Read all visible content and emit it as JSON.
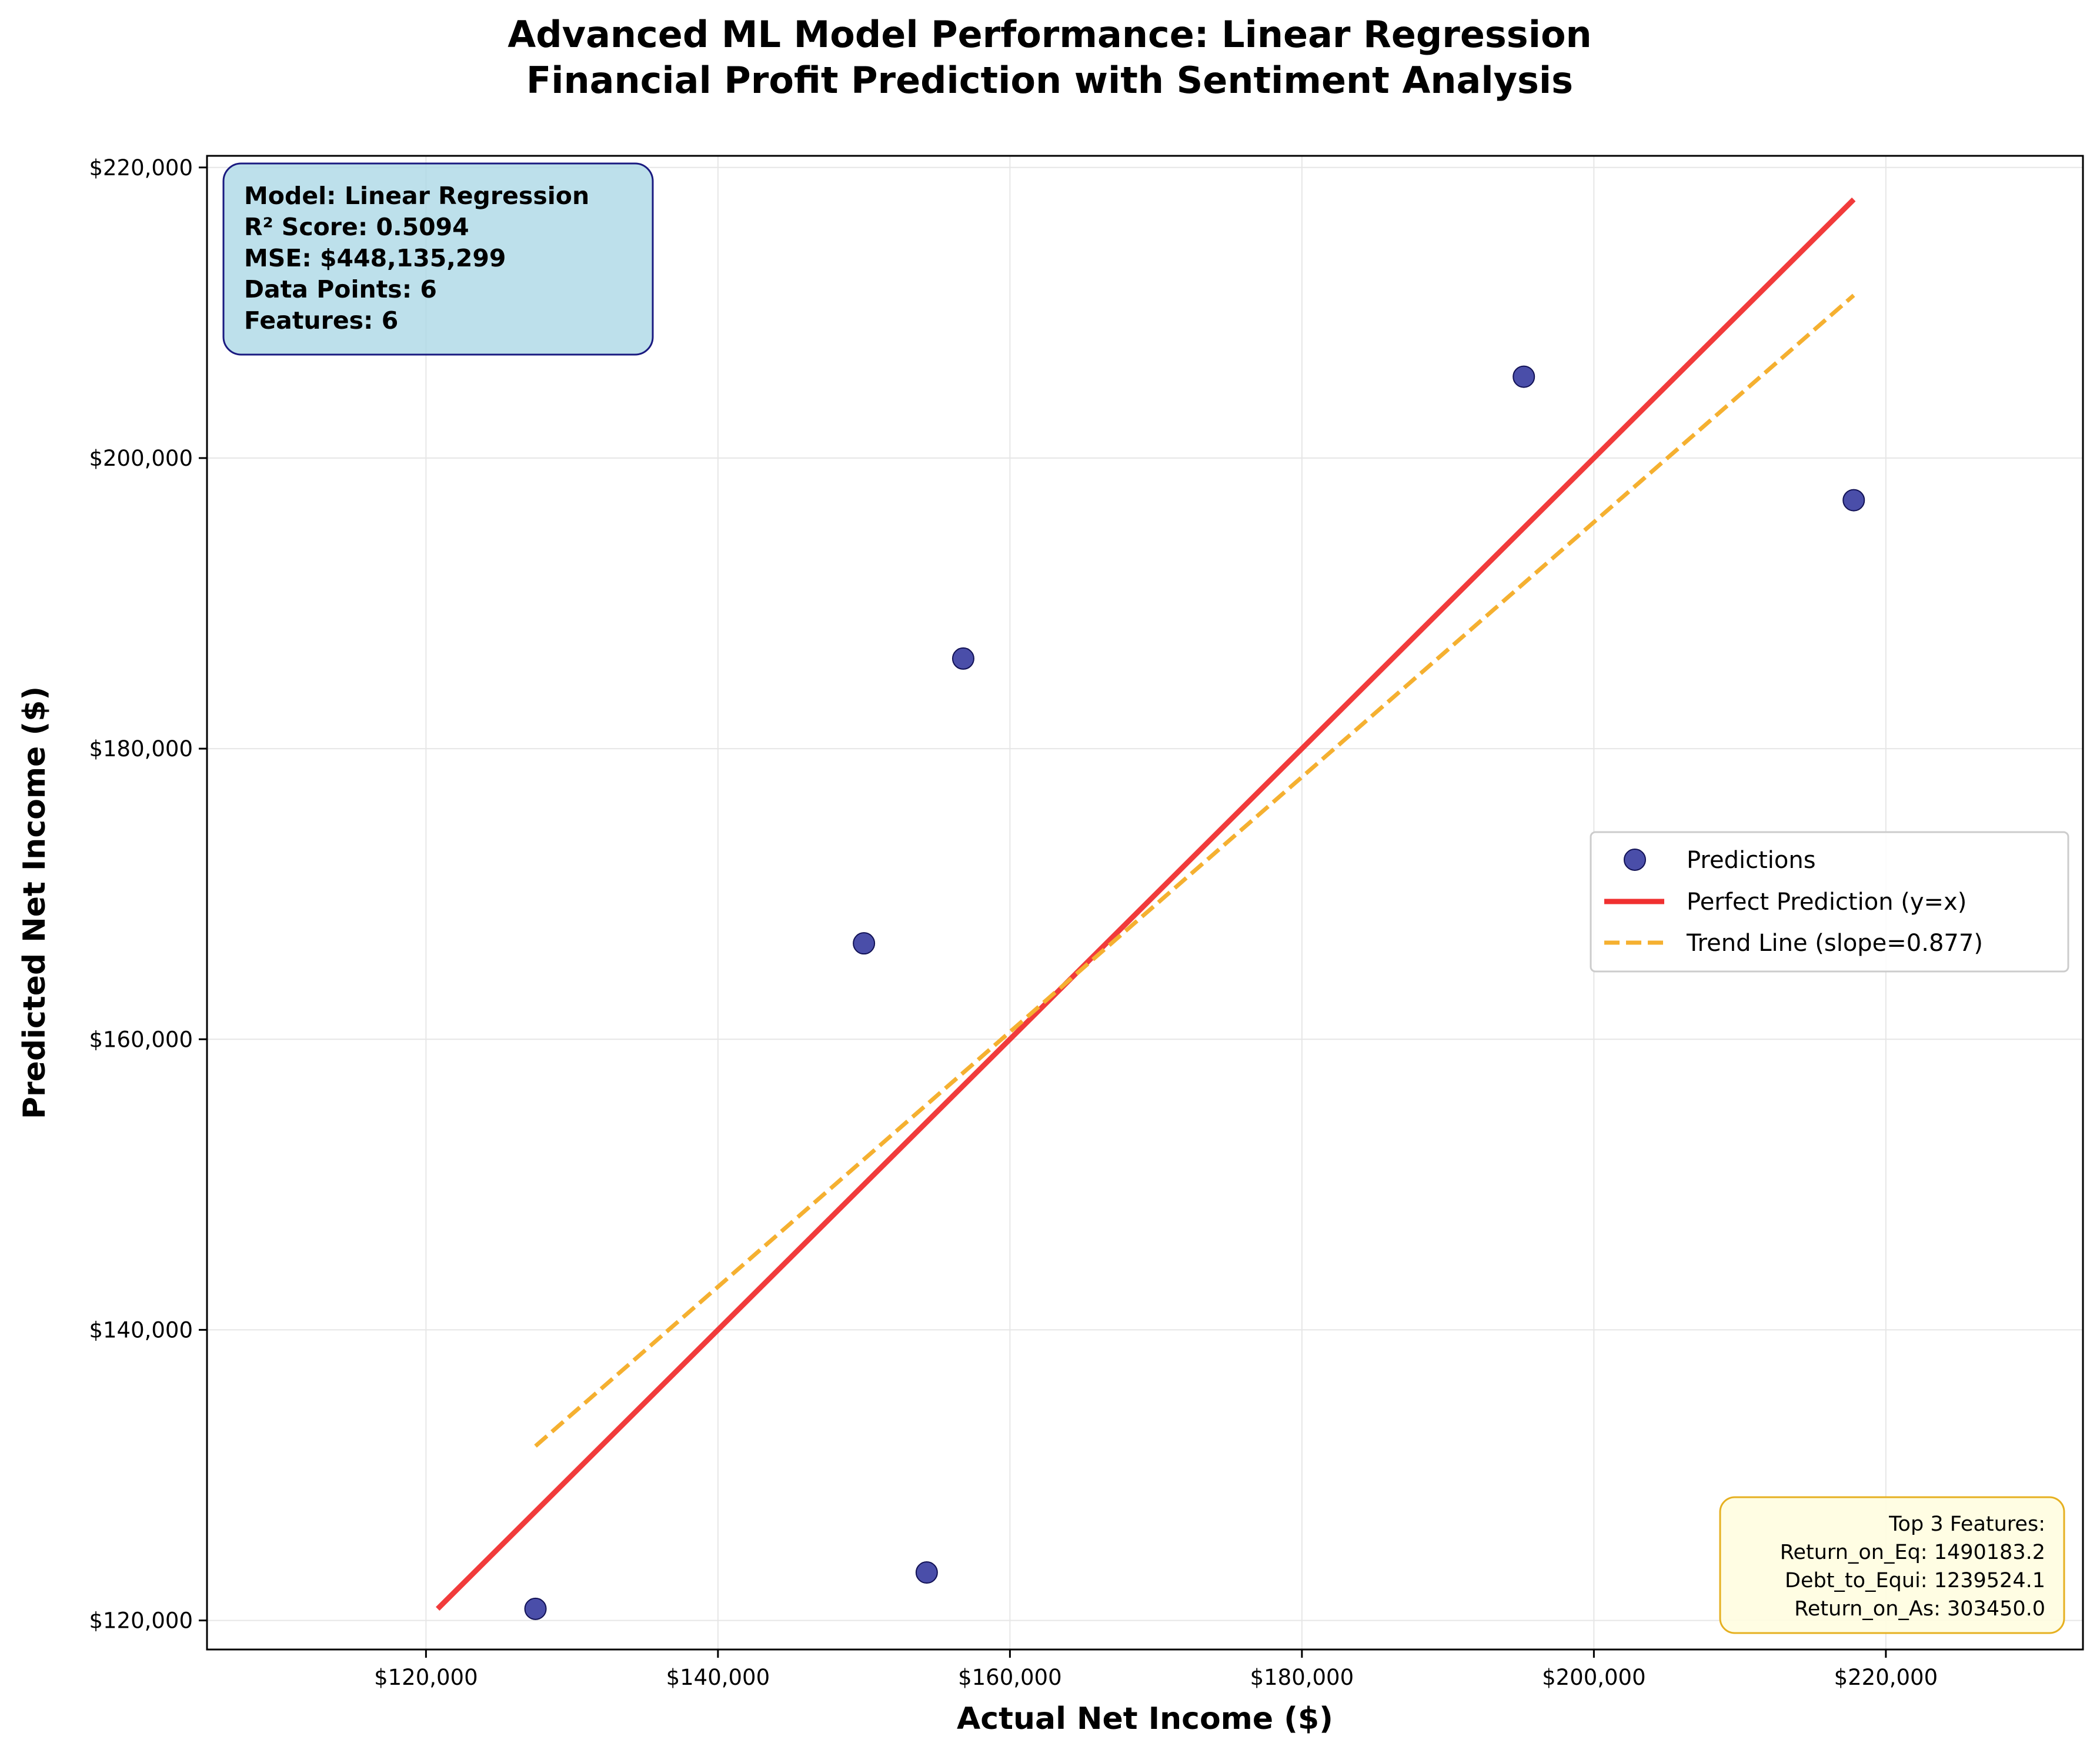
{
  "chart_data": {
    "type": "scatter",
    "title": [
      "Advanced ML Model Performance: Linear Regression",
      "Financial Profit Prediction with Sentiment Analysis"
    ],
    "xlabel": "Actual Net Income ($)",
    "ylabel": "Predicted Net Income ($)",
    "xlim": [
      105000,
      233500
    ],
    "ylim": [
      118000,
      220800
    ],
    "xticks": [
      120000,
      140000,
      160000,
      180000,
      200000,
      220000
    ],
    "yticks": [
      120000,
      140000,
      160000,
      180000,
      200000,
      220000
    ],
    "xtick_labels": [
      "$120,000",
      "$140,000",
      "$160,000",
      "$180,000",
      "$200,000",
      "$220,000"
    ],
    "ytick_labels": [
      "$120,000",
      "$140,000",
      "$160,000",
      "$180,000",
      "$200,000",
      "$220,000"
    ],
    "grid": true,
    "legend_position": "center-right",
    "series": [
      {
        "name": "Predictions",
        "kind": "scatter",
        "color": "#2a2f9a",
        "points": [
          {
            "x": 127500,
            "y": 120800
          },
          {
            "x": 150000,
            "y": 166600
          },
          {
            "x": 154300,
            "y": 123300
          },
          {
            "x": 156800,
            "y": 186200
          },
          {
            "x": 195200,
            "y": 205600
          },
          {
            "x": 217800,
            "y": 197100
          }
        ]
      },
      {
        "name": "Perfect Prediction (y=x)",
        "kind": "line",
        "color": "#f03030",
        "points": [
          {
            "x": 120800,
            "y": 120800
          },
          {
            "x": 217800,
            "y": 217800
          }
        ]
      },
      {
        "name": "Trend Line (slope=0.877)",
        "kind": "dashed-line",
        "color": "#f5b030",
        "points": [
          {
            "x": 127500,
            "y": 132000
          },
          {
            "x": 217800,
            "y": 211200
          }
        ]
      }
    ],
    "annotations": {
      "stats_box": [
        "Model: Linear Regression",
        "R² Score: 0.5094",
        "MSE: $448,135,299",
        "Data Points: 6",
        "Features: 6"
      ],
      "features_box": [
        "Top 3 Features:",
        "Return_on_Eq: 1490183.2",
        "Debt_to_Equi: 1239524.1",
        "Return_on_As: 303450.0"
      ]
    }
  }
}
